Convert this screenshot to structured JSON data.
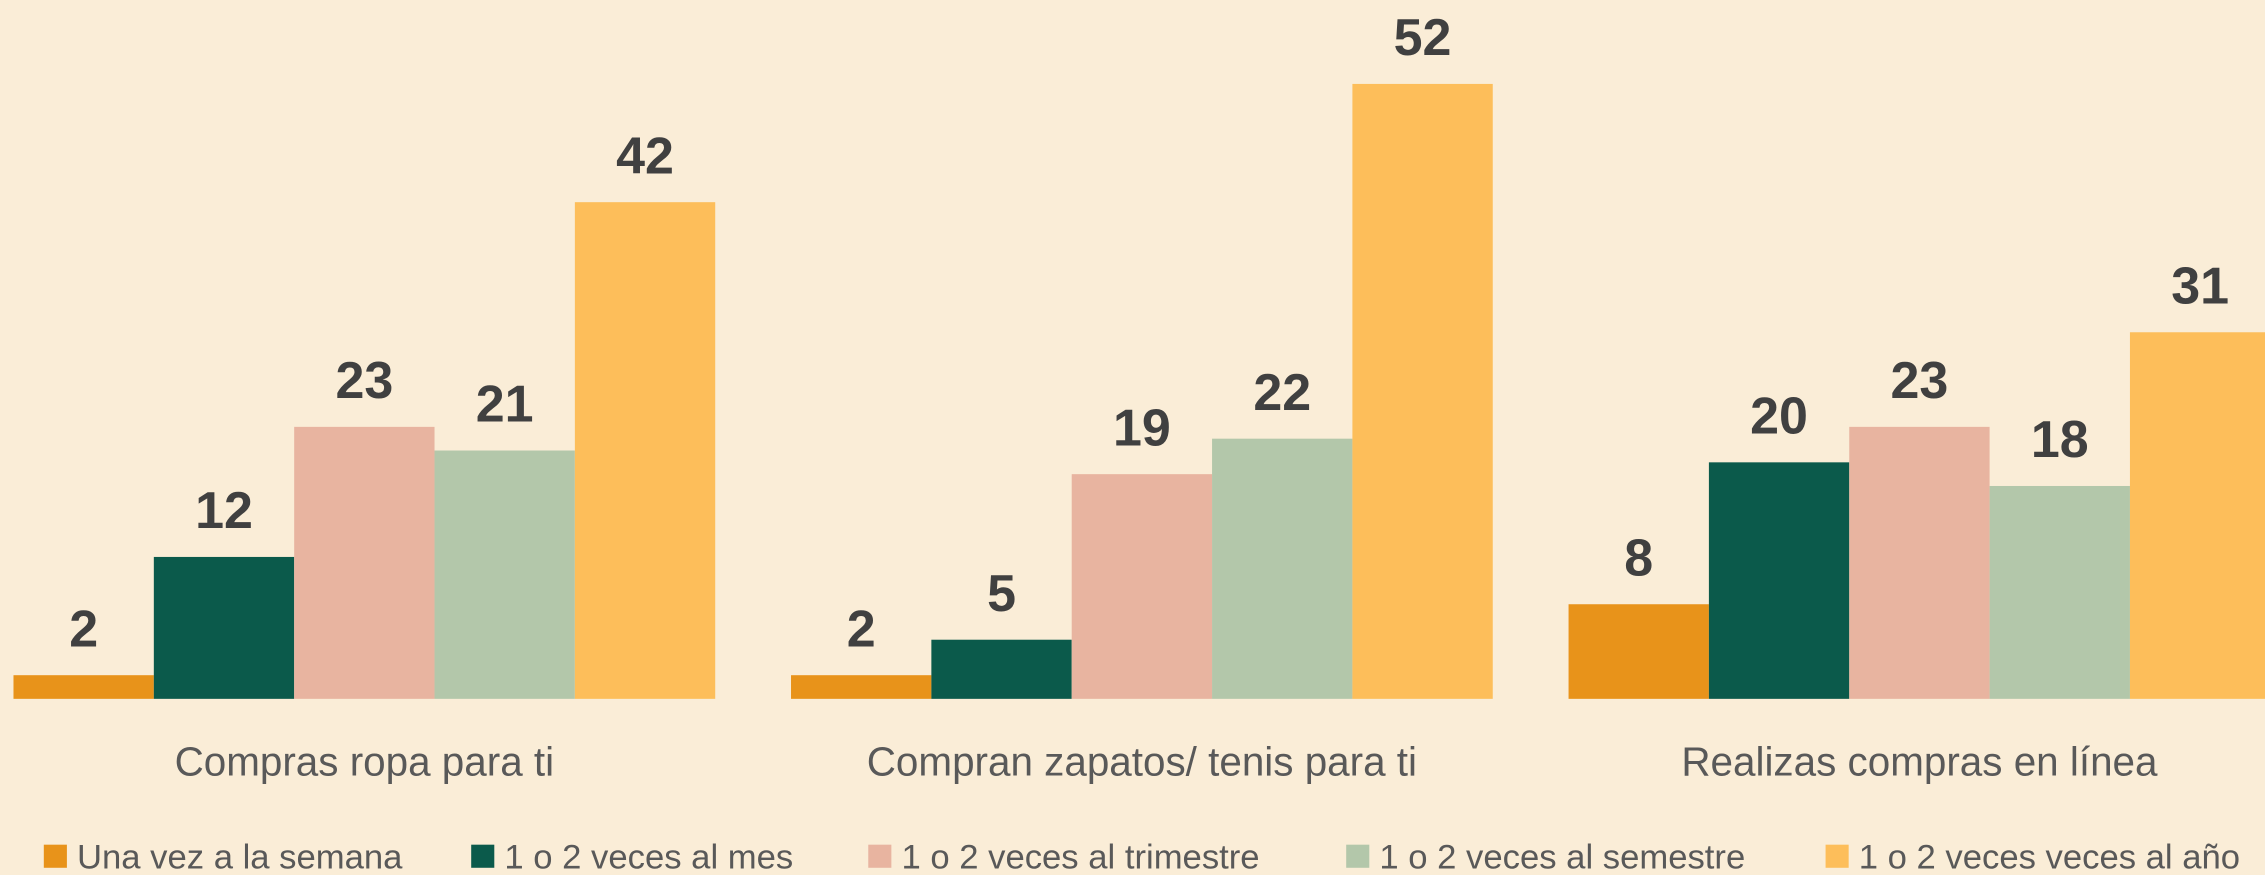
{
  "chart_data": {
    "type": "bar",
    "categories": [
      "Compras ropa para ti",
      "Compran zapatos/ tenis para ti",
      "Realizas compras en línea"
    ],
    "series": [
      {
        "name": "Una vez a la semana",
        "color": "#E8931A",
        "values": [
          2,
          2,
          8
        ]
      },
      {
        "name": "1 o 2 veces al mes",
        "color": "#0B5A4B",
        "values": [
          12,
          5,
          20
        ]
      },
      {
        "name": "1 o 2 veces al trimestre",
        "color": "#E8B4A0",
        "values": [
          23,
          19,
          23
        ]
      },
      {
        "name": "1 o 2 veces al semestre",
        "color": "#B3C7AA",
        "values": [
          21,
          22,
          18
        ]
      },
      {
        "name": "1 o 2 veces veces al año",
        "color": "#FDBE5A",
        "values": [
          42,
          52,
          31
        ]
      }
    ],
    "legend": "bottom"
  }
}
